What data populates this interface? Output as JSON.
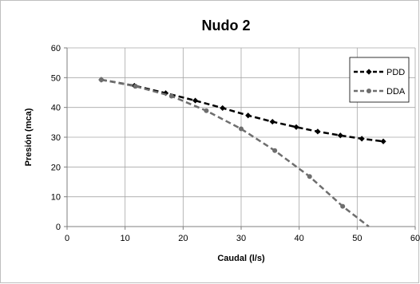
{
  "chart_data": {
    "type": "line",
    "title": "Nudo 2",
    "xlabel": "Caudal (l/s)",
    "ylabel": "Presión (mca)",
    "xlim": [
      0,
      60
    ],
    "ylim": [
      0,
      60
    ],
    "xticks": [
      "0",
      "10",
      "20",
      "30",
      "40",
      "50",
      "60"
    ],
    "yticks": [
      "0",
      "10",
      "20",
      "30",
      "40",
      "50",
      "60"
    ],
    "grid": true,
    "legend": "top-right",
    "series": [
      {
        "name": "PDD",
        "color": "#000000",
        "dash": true,
        "marker": "diamond",
        "x": [
          5.9,
          11.6,
          17.0,
          22.1,
          26.8,
          31.2,
          35.4,
          39.5,
          43.2,
          47.1,
          50.8,
          54.5
        ],
        "y": [
          49.3,
          47.3,
          44.8,
          42.3,
          39.8,
          37.3,
          35.2,
          33.4,
          31.9,
          30.6,
          29.5,
          28.6
        ]
      },
      {
        "name": "DDA",
        "color": "#6e6e6e",
        "dash": true,
        "marker": "circle",
        "x": [
          5.9,
          11.8,
          18.0,
          24.0,
          30.0,
          35.8,
          41.8,
          47.5,
          52.0
        ],
        "y": [
          49.3,
          47.1,
          43.8,
          38.9,
          32.8,
          25.5,
          16.8,
          6.8,
          0
        ]
      }
    ]
  }
}
